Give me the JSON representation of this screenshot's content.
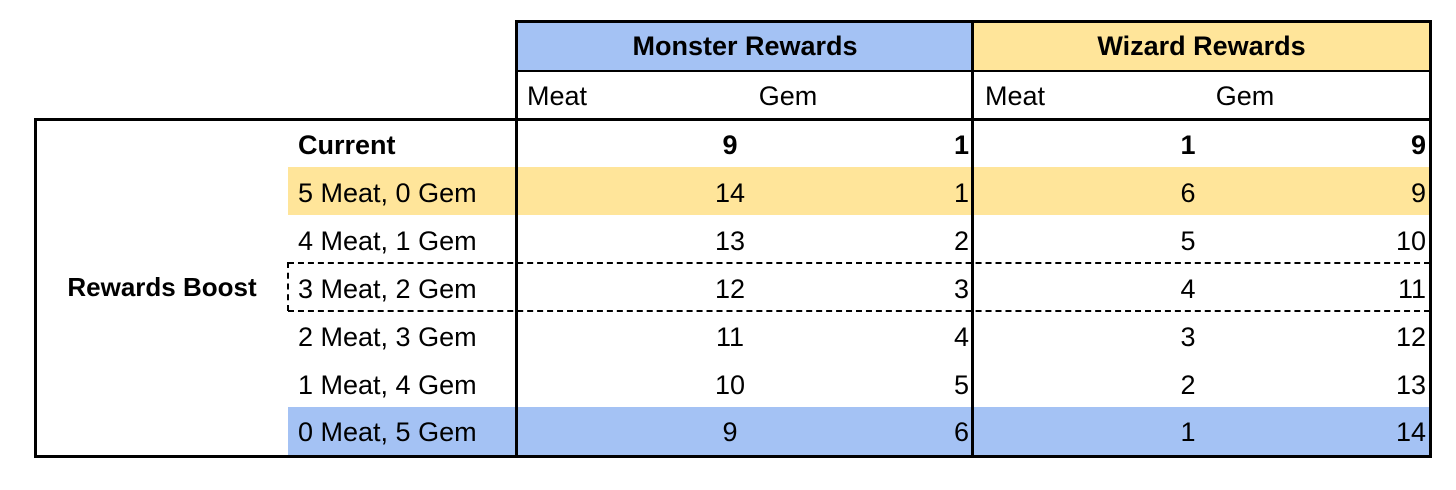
{
  "colors": {
    "monster_blue": "#a4c2f4",
    "wizard_yellow": "#ffe59a",
    "border": "#000000"
  },
  "header": {
    "monster_title": "Monster Rewards",
    "wizard_title": "Wizard Rewards",
    "monster_sub": [
      "Meat",
      "Gem"
    ],
    "wizard_sub": [
      "Meat",
      "Gem"
    ]
  },
  "side_label": "Rewards Boost",
  "rows": [
    {
      "label": "Current",
      "m_meat": "9",
      "m_gem": "1",
      "w_meat": "1",
      "w_gem": "9",
      "bold": true,
      "highlight": "none"
    },
    {
      "label": "5 Meat, 0 Gem",
      "m_meat": "14",
      "m_gem": "1",
      "w_meat": "6",
      "w_gem": "9",
      "bold": false,
      "highlight": "yellow"
    },
    {
      "label": "4 Meat, 1 Gem",
      "m_meat": "13",
      "m_gem": "2",
      "w_meat": "5",
      "w_gem": "10",
      "bold": false,
      "highlight": "none"
    },
    {
      "label": "3 Meat, 2 Gem",
      "m_meat": "12",
      "m_gem": "3",
      "w_meat": "4",
      "w_gem": "11",
      "bold": false,
      "highlight": "dashed"
    },
    {
      "label": "2 Meat, 3 Gem",
      "m_meat": "11",
      "m_gem": "4",
      "w_meat": "3",
      "w_gem": "12",
      "bold": false,
      "highlight": "none"
    },
    {
      "label": "1 Meat, 4 Gem",
      "m_meat": "10",
      "m_gem": "5",
      "w_meat": "2",
      "w_gem": "13",
      "bold": false,
      "highlight": "none"
    },
    {
      "label": "0 Meat, 5 Gem",
      "m_meat": "9",
      "m_gem": "6",
      "w_meat": "1",
      "w_gem": "14",
      "bold": false,
      "highlight": "blue"
    }
  ]
}
